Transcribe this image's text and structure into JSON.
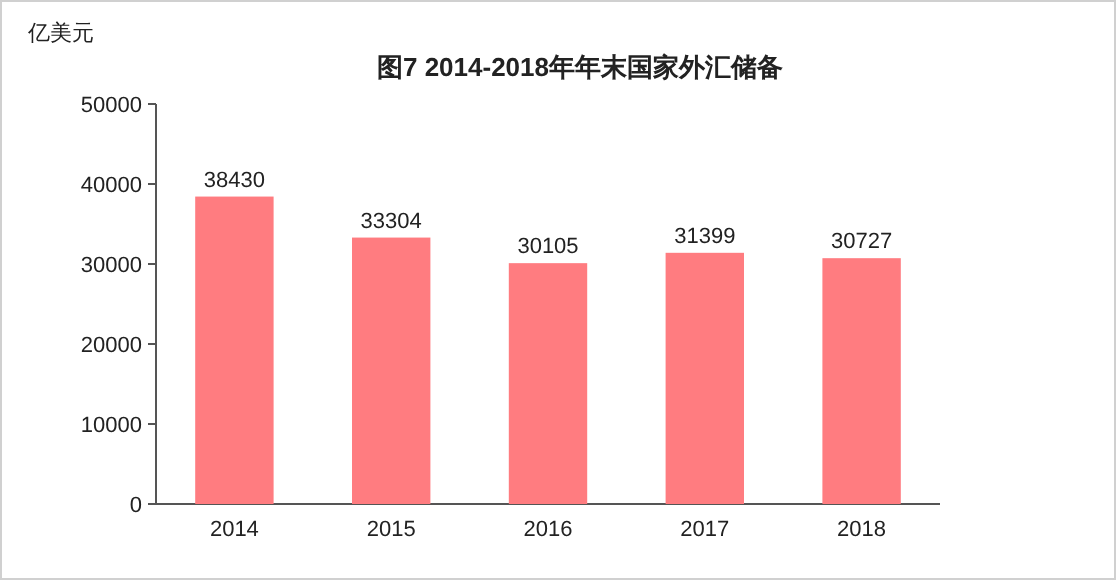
{
  "chart_data": {
    "type": "bar",
    "title": "图7  2014-2018年年末国家外汇储备",
    "ylabel": "亿美元",
    "categories": [
      "2014",
      "2015",
      "2016",
      "2017",
      "2018"
    ],
    "values": [
      38430,
      33304,
      30105,
      31399,
      30727
    ],
    "color": "#ff7c80",
    "ylim": [
      0,
      50000
    ],
    "yticks": [
      0,
      10000,
      20000,
      30000,
      40000,
      50000
    ],
    "data_labels": true
  }
}
